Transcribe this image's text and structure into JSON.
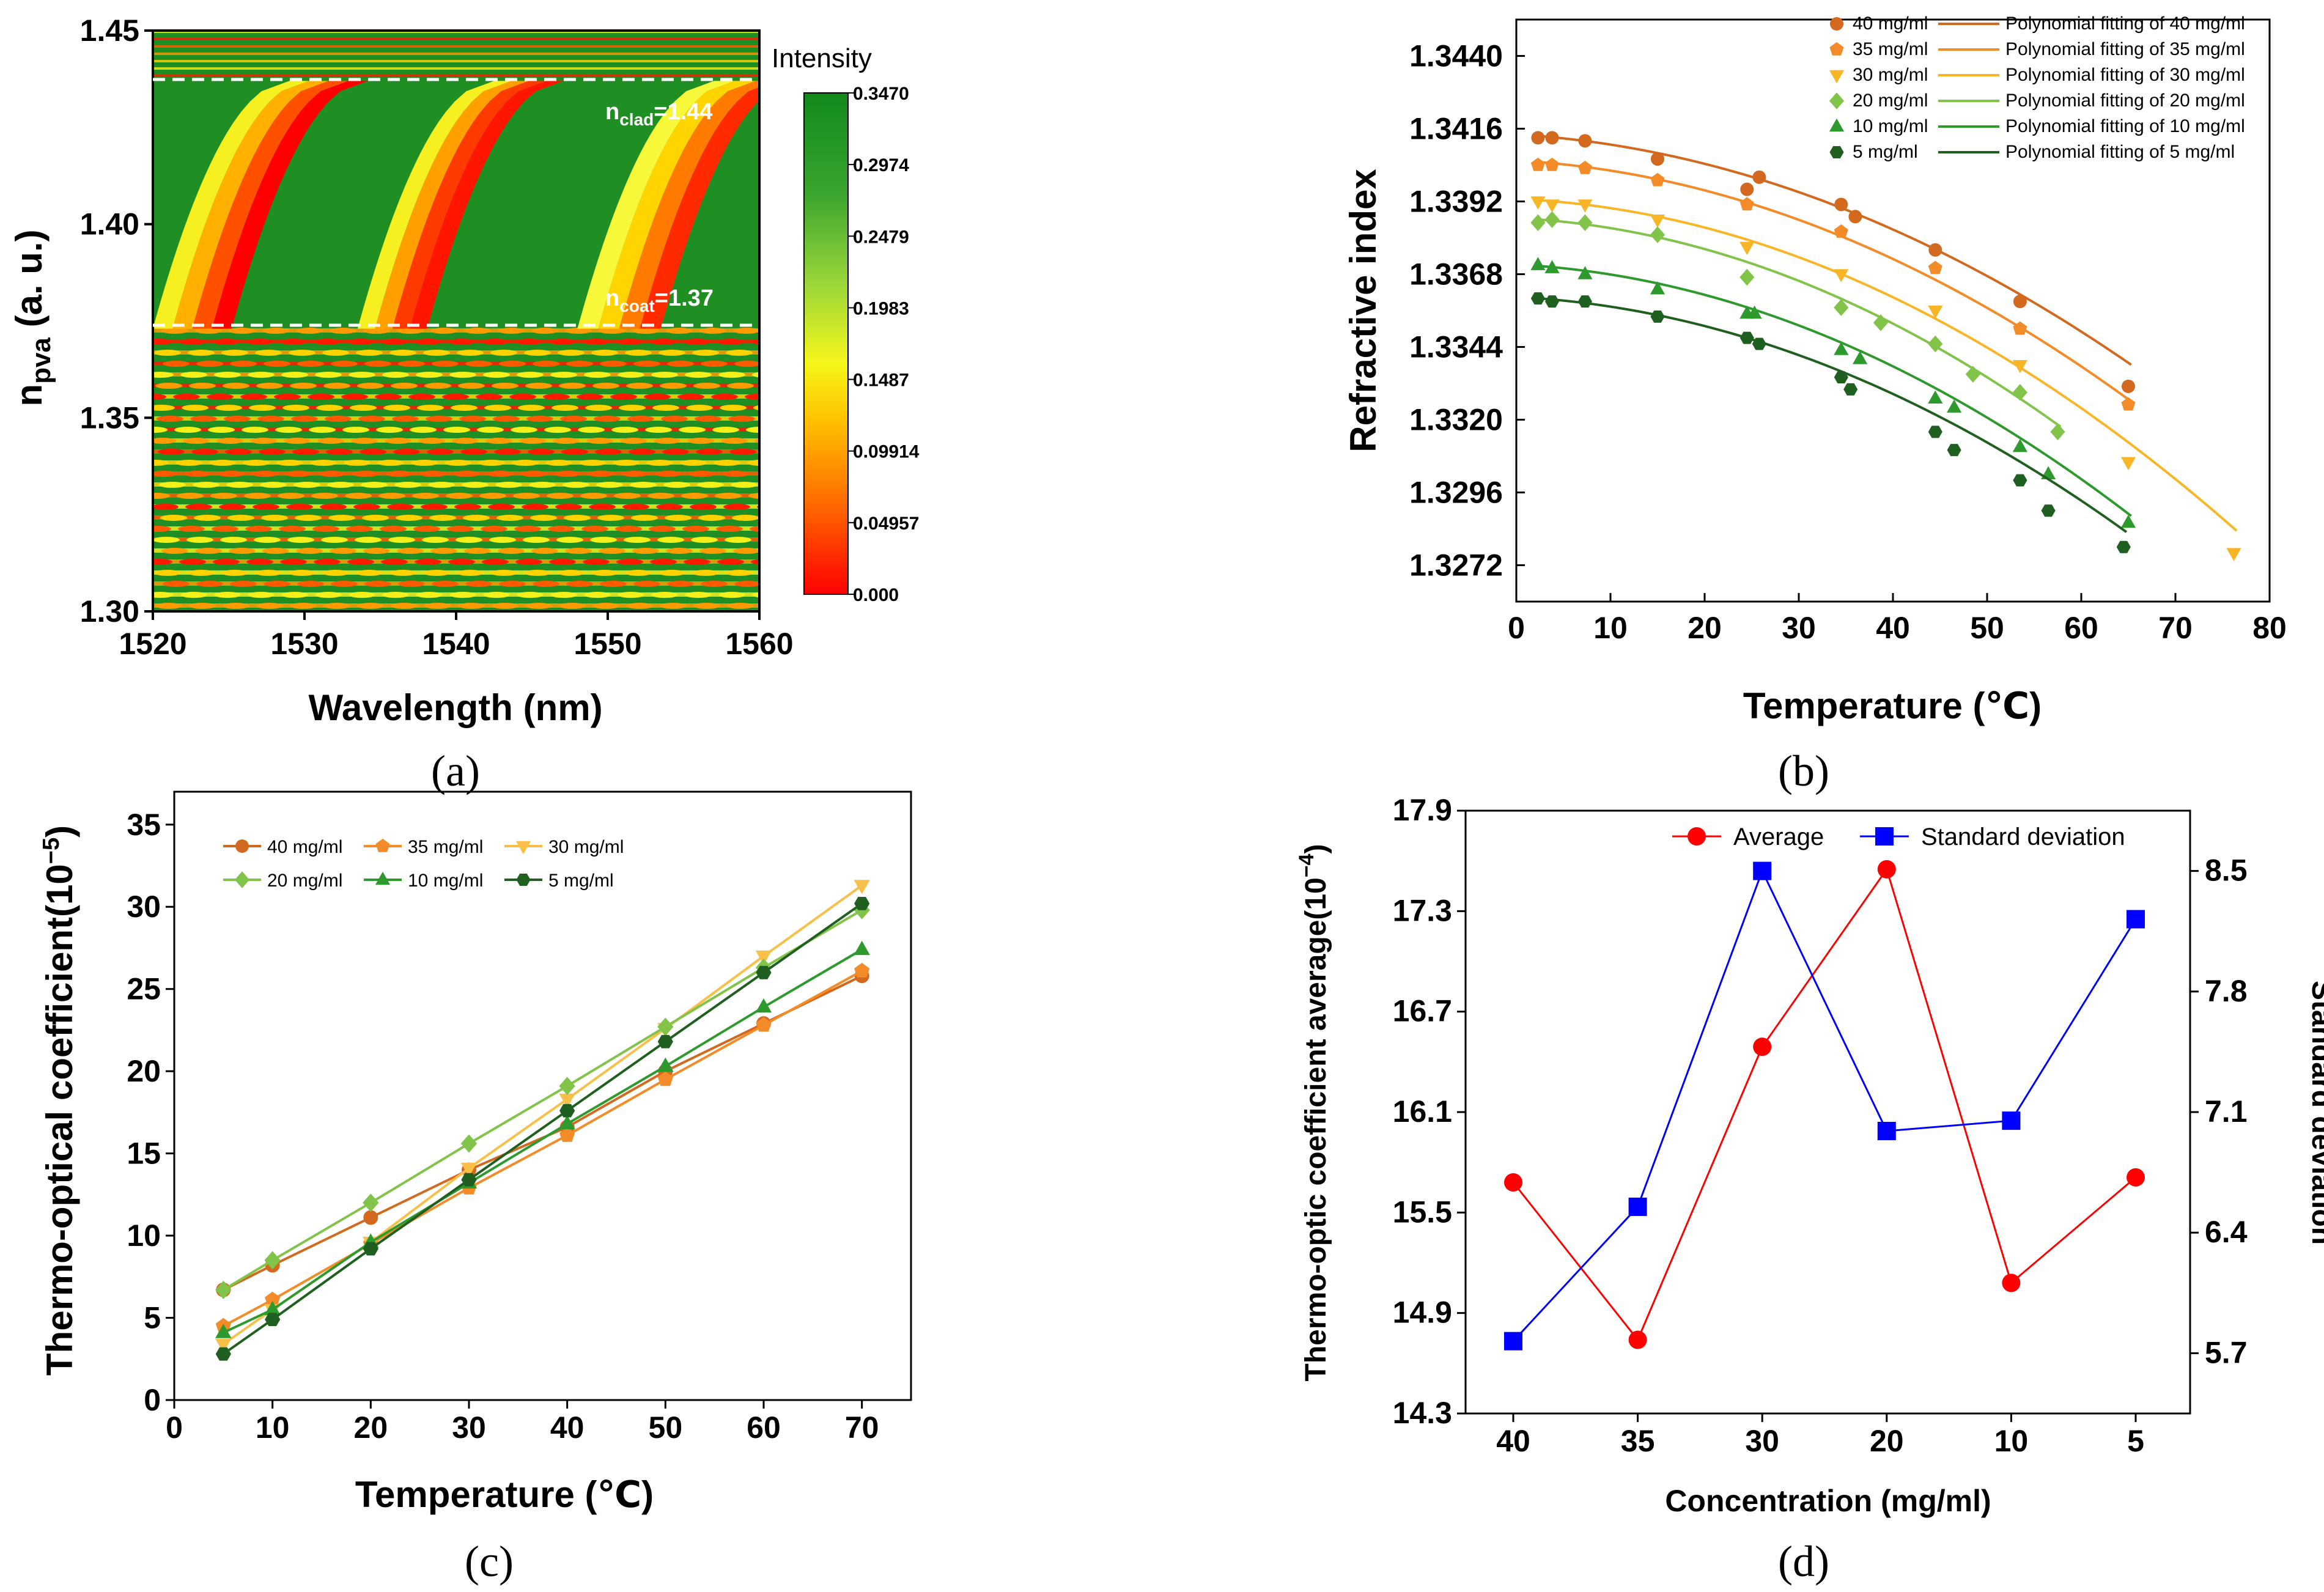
{
  "panels": {
    "a": {
      "caption": "(a)",
      "heatmap": {
        "type": "heatmap",
        "xlabel": "Wavelength (nm)",
        "ylabel": "n",
        "ylabel_sub": "pva",
        "ylabel_unit": " (a. u.)",
        "x_ticks": [
          "1520",
          "1530",
          "1540",
          "1550",
          "1560"
        ],
        "y_ticks": [
          "1.30",
          "1.35",
          "1.40",
          "1.45"
        ],
        "xlim": [
          1520,
          1560
        ],
        "ylim": [
          1.3,
          1.45
        ],
        "colorbar": {
          "title": "Intensity",
          "ticks": [
            "0.3470",
            "0.2974",
            "0.2479",
            "0.1983",
            "0.1487",
            "0.09914",
            "0.04957",
            "0.000"
          ],
          "colors": [
            "#ff0000",
            "#ff7a00",
            "#ffd400",
            "#f4f40a",
            "#8ed23a",
            "#3aa52e",
            "#128a1c"
          ]
        },
        "annotations": [
          {
            "base": "n",
            "sub": "clad",
            "text": "=1.44",
            "value": 1.437
          },
          {
            "base": "n",
            "sub": "coat",
            "text": "=1.37",
            "value": 1.373
          }
        ]
      }
    },
    "b": {
      "caption": "(b)",
      "xlabel": "Temperature (℃)",
      "ylabel": "Refractive index",
      "xlim": [
        0,
        80
      ],
      "ylim": [
        1.326,
        1.3452
      ],
      "x_ticks": [
        0,
        10,
        20,
        30,
        40,
        50,
        60,
        70,
        80
      ],
      "y_ticks": [
        "1.3272",
        "1.3296",
        "1.3320",
        "1.3344",
        "1.3368",
        "1.3392",
        "1.3416",
        "1.3440"
      ]
    },
    "c": {
      "caption": "(c)",
      "xlabel": "Temperature (℃)",
      "ylabel": "Thermo-optical coefficient(10",
      "ylabel_exp": "−5",
      "ylabel_end": ")",
      "xlim": [
        0,
        75
      ],
      "ylim": [
        0,
        37
      ],
      "x_ticks": [
        0,
        10,
        20,
        30,
        40,
        50,
        60,
        70
      ],
      "y_ticks": [
        0,
        5,
        10,
        15,
        20,
        25,
        30,
        35
      ]
    },
    "d": {
      "caption": "(d)",
      "xlabel": "Concentration (mg/ml)",
      "ylabel_left": "Thermo-optic coefficient average(10",
      "ylabel_left_exp": "−4",
      "ylabel_left_end": ")",
      "ylabel_right": "Standard deviation",
      "left_ticks": [
        "14.3",
        "14.9",
        "15.5",
        "16.1",
        "16.7",
        "17.3",
        "17.9"
      ],
      "right_ticks": [
        "5.7",
        "6.4",
        "7.1",
        "7.8",
        "8.5"
      ]
    }
  },
  "chart_data": [
    {
      "type": "scatter",
      "panel": "b",
      "title": "",
      "xlabel": "Temperature (℃)",
      "ylabel": "Refractive index",
      "xlim": [
        0,
        80
      ],
      "ylim": [
        1.326,
        1.3452
      ],
      "legend_position": "top-right",
      "series": [
        {
          "name": "40 mg/ml",
          "fit_name": "Polynomial fitting of 40 mg/ml",
          "color": "#d2691e",
          "marker": "circle",
          "x": [
            2.3,
            3.8,
            7.3,
            15,
            24.5,
            25.8,
            34.5,
            36,
            44.5,
            53.5,
            65
          ],
          "y": [
            1.3413,
            1.3413,
            1.3412,
            1.3406,
            1.3396,
            1.34,
            1.3391,
            1.3387,
            1.3376,
            1.3359,
            1.3331
          ],
          "fit": [
            1.34141,
            -1.84e-05,
            -1.5e-06
          ]
        },
        {
          "name": "35 mg/ml",
          "fit_name": "Polynomial fitting of 35 mg/ml",
          "color": "#f28b28",
          "marker": "pentagon",
          "x": [
            2.3,
            3.8,
            7.3,
            15,
            24.5,
            34.5,
            44.5,
            53.5,
            65
          ],
          "y": [
            1.3404,
            1.3404,
            1.3403,
            1.3399,
            1.3391,
            1.3382,
            1.337,
            1.335,
            1.3325
          ],
          "fit": [
            1.34055,
            -1.72e-05,
            -1.6e-06
          ]
        },
        {
          "name": "30 mg/ml",
          "fit_name": "Polynomial fitting of 30 mg/ml",
          "color": "#f8b526",
          "marker": "triangle-down",
          "x": [
            2.3,
            3.8,
            7.3,
            15,
            24.5,
            34.5,
            44.5,
            53.5,
            65,
            76.2
          ],
          "y": [
            1.3392,
            1.3391,
            1.3391,
            1.3386,
            1.3377,
            1.3368,
            1.3356,
            1.3338,
            1.3306,
            1.3276
          ],
          "fit": [
            1.33928,
            -1.3e-05,
            -1.7e-06
          ]
        },
        {
          "name": "20 mg/ml",
          "fit_name": "Polynomial fitting of 20 mg/ml",
          "color": "#82c44a",
          "marker": "diamond",
          "x": [
            2.3,
            3.8,
            7.3,
            15,
            24.5,
            34.5,
            38.7,
            44.5,
            48.5,
            53.5,
            57.5
          ],
          "y": [
            1.3385,
            1.3386,
            1.3385,
            1.3381,
            1.3367,
            1.3357,
            1.3352,
            1.3345,
            1.3335,
            1.3329,
            1.3316
          ],
          "fit": [
            1.33865,
            -1.5e-05,
            -1.8e-06
          ]
        },
        {
          "name": "10 mg/ml",
          "fit_name": "Polynomial fitting of 10 mg/ml",
          "color": "#2e9a2e",
          "marker": "triangle-up",
          "x": [
            2.3,
            3.8,
            7.3,
            15,
            24.5,
            25.3,
            34.5,
            36.5,
            44.5,
            46.5,
            53.5,
            56.5,
            65
          ],
          "y": [
            1.3371,
            1.337,
            1.3368,
            1.3363,
            1.3355,
            1.3355,
            1.3343,
            1.334,
            1.3327,
            1.3324,
            1.3311,
            1.3302,
            1.3286
          ],
          "fit": [
            1.33712,
            -1.6e-05,
            -1.7e-06
          ]
        },
        {
          "name": "5  mg/ml",
          "fit_name": "Polynomial fitting of  5  mg/ml",
          "color": "#1f5f1f",
          "marker": "hexagon",
          "x": [
            2.3,
            3.8,
            7.3,
            15,
            24.5,
            25.8,
            34.5,
            35.5,
            44.5,
            46.5,
            53.5,
            56.5,
            64.5
          ],
          "y": [
            1.336,
            1.3359,
            1.3359,
            1.3354,
            1.3347,
            1.3345,
            1.3334,
            1.333,
            1.3316,
            1.331,
            1.33,
            1.329,
            1.3278
          ],
          "fit": [
            1.33605,
            -1.6e-05,
            -1.6e-06
          ]
        }
      ]
    },
    {
      "type": "line",
      "panel": "c",
      "xlabel": "Temperature (℃)",
      "ylabel": "Thermo-optical coefficient(10^-5)",
      "xlim": [
        0,
        75
      ],
      "ylim": [
        0,
        37
      ],
      "legend_position": "top-left",
      "x": [
        5,
        10,
        20,
        30,
        40,
        50,
        60,
        70
      ],
      "series": [
        {
          "name": "40 mg/ml",
          "color": "#d2691e",
          "marker": "circle",
          "values": [
            6.7,
            8.2,
            11.1,
            14.0,
            16.6,
            20.0,
            22.9,
            25.8
          ]
        },
        {
          "name": "35 mg/ml",
          "color": "#f28b28",
          "marker": "pentagon",
          "values": [
            4.5,
            6.1,
            9.5,
            12.9,
            16.1,
            19.5,
            22.8,
            26.1
          ]
        },
        {
          "name": "30 mg/ml",
          "color": "#f8c048",
          "marker": "triangle-down",
          "values": [
            3.4,
            5.5,
            9.6,
            14.1,
            18.3,
            22.6,
            27.0,
            31.3
          ]
        },
        {
          "name": "20 mg/ml",
          "color": "#82c44a",
          "marker": "diamond",
          "values": [
            6.7,
            8.5,
            12.0,
            15.6,
            19.1,
            22.7,
            26.3,
            29.8
          ]
        },
        {
          "name": "10 mg/ml",
          "color": "#2e9a2e",
          "marker": "triangle-up",
          "values": [
            4.1,
            5.5,
            9.6,
            13.2,
            16.8,
            20.3,
            23.9,
            27.4
          ]
        },
        {
          "name": "5  mg/ml",
          "color": "#1f5f1f",
          "marker": "hexagon",
          "values": [
            2.8,
            4.9,
            9.2,
            13.4,
            17.6,
            21.8,
            26.0,
            30.2
          ]
        }
      ]
    },
    {
      "type": "line",
      "panel": "d",
      "xlabel": "Concentration (mg/ml)",
      "categories": [
        "40",
        "35",
        "30",
        "20",
        "10",
        "5"
      ],
      "legend_position": "top-right",
      "y_left_lim": [
        14.3,
        17.9
      ],
      "y_right_lim": [
        5.35,
        8.85
      ],
      "series": [
        {
          "name": "Average",
          "color": "#ff0000",
          "marker": "circle",
          "axis": "left",
          "values": [
            15.68,
            14.74,
            16.49,
            17.55,
            15.08,
            15.71
          ]
        },
        {
          "name": "Standard deviation",
          "color": "#0000ff",
          "marker": "square",
          "axis": "right",
          "values": [
            5.77,
            6.55,
            8.5,
            6.99,
            7.05,
            8.22
          ]
        }
      ]
    }
  ]
}
